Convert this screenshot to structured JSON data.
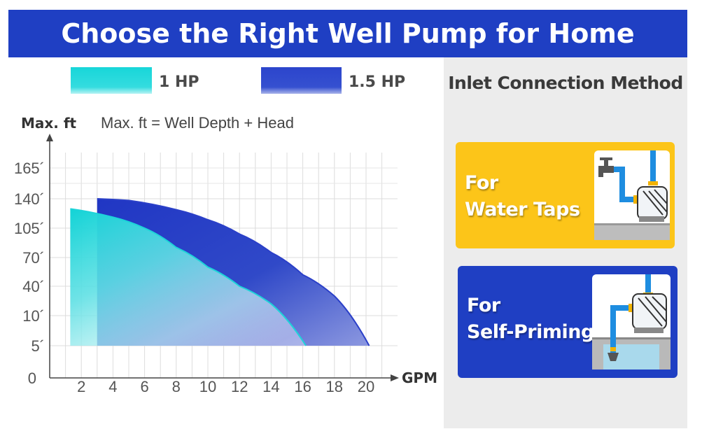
{
  "header": {
    "title": "Choose the Right Well Pump for Home"
  },
  "legend": [
    {
      "label": "1 HP",
      "color": "#1dd4d9"
    },
    {
      "label": "1.5 HP",
      "color": "#2b40c8"
    }
  ],
  "chart_data": {
    "type": "area",
    "ylabel": "Max. ft",
    "xlabel": "GPM",
    "note": "Max. ft = Well Depth + Head",
    "x_ticks": [
      2,
      4,
      6,
      8,
      10,
      12,
      14,
      16,
      18,
      20
    ],
    "y_ticks": [
      "0",
      "5´",
      "10´",
      "40´",
      "70´",
      "105´",
      "140´",
      "165´"
    ],
    "xlim": [
      0,
      22
    ],
    "grid": true,
    "series": [
      {
        "name": "1 HP",
        "color": "#1dd4d9",
        "x": [
          1.3,
          4,
          6,
          8,
          10,
          12,
          14,
          16.2
        ],
        "y": [
          128,
          118,
          105,
          82,
          60,
          40,
          22,
          5
        ]
      },
      {
        "name": "1.5 HP",
        "color": "#2b40c8",
        "x": [
          3,
          5,
          8,
          10,
          12,
          14,
          16,
          18,
          20.2
        ],
        "y": [
          140,
          138,
          127,
          115,
          98,
          76,
          52,
          30,
          5
        ]
      }
    ]
  },
  "right_panel": {
    "title": "Inlet Connection Method",
    "cards": [
      {
        "label_lines": [
          "For",
          "Water Taps"
        ],
        "color": "#fcc519",
        "icon": "faucet-pump-icon"
      },
      {
        "label_lines": [
          "For",
          "Self-Priming"
        ],
        "color": "#1f3fc3",
        "icon": "well-pump-icon"
      }
    ]
  }
}
